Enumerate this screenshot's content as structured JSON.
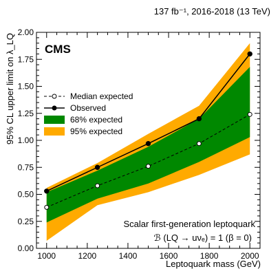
{
  "chart_data": {
    "type": "line",
    "lumi_label": "137 fb⁻¹, 2016-2018 (13 TeV)",
    "experiment": "CMS",
    "xlabel": "Leptoquark mass (GeV)",
    "ylabel": "95% CL upper limit on λ_LQ",
    "xlim": [
      950,
      2050
    ],
    "ylim": [
      0,
      2.0
    ],
    "x_ticks": [
      "1000",
      "1200",
      "1400",
      "1600",
      "1800",
      "2000"
    ],
    "y_ticks": [
      "0.00",
      "0.25",
      "0.50",
      "0.75",
      "1.00",
      "1.25",
      "1.50",
      "1.75",
      "2.00"
    ],
    "x": [
      1000,
      1250,
      1500,
      1750,
      2000
    ],
    "series": [
      {
        "name": "Median expected",
        "style": "dashed-open-circle",
        "values": [
          0.38,
          0.58,
          0.76,
          0.97,
          1.24
        ]
      },
      {
        "name": "Observed",
        "style": "solid-filled-circle",
        "values": [
          0.53,
          0.75,
          0.97,
          1.2,
          1.8
        ]
      }
    ],
    "bands": [
      {
        "name": "68% expected",
        "color": "#008800",
        "low": [
          0.24,
          0.46,
          0.6,
          0.8,
          1.03
        ],
        "high": [
          0.52,
          0.72,
          0.94,
          1.2,
          1.68
        ]
      },
      {
        "name": "95% expected",
        "color": "#ffaa00",
        "low": [
          0.07,
          0.4,
          0.52,
          0.68,
          0.87
        ],
        "high": [
          0.56,
          0.79,
          1.06,
          1.32,
          1.9
        ]
      }
    ],
    "legend_order": [
      "Median expected",
      "Observed",
      "68% expected",
      "95% expected"
    ],
    "legend_position": "upper-left",
    "annotation_line1": "Scalar first-generation leptoquark",
    "annotation_line2": "ℬ (LQ → uνₑ) = 1  (β = 0)"
  }
}
